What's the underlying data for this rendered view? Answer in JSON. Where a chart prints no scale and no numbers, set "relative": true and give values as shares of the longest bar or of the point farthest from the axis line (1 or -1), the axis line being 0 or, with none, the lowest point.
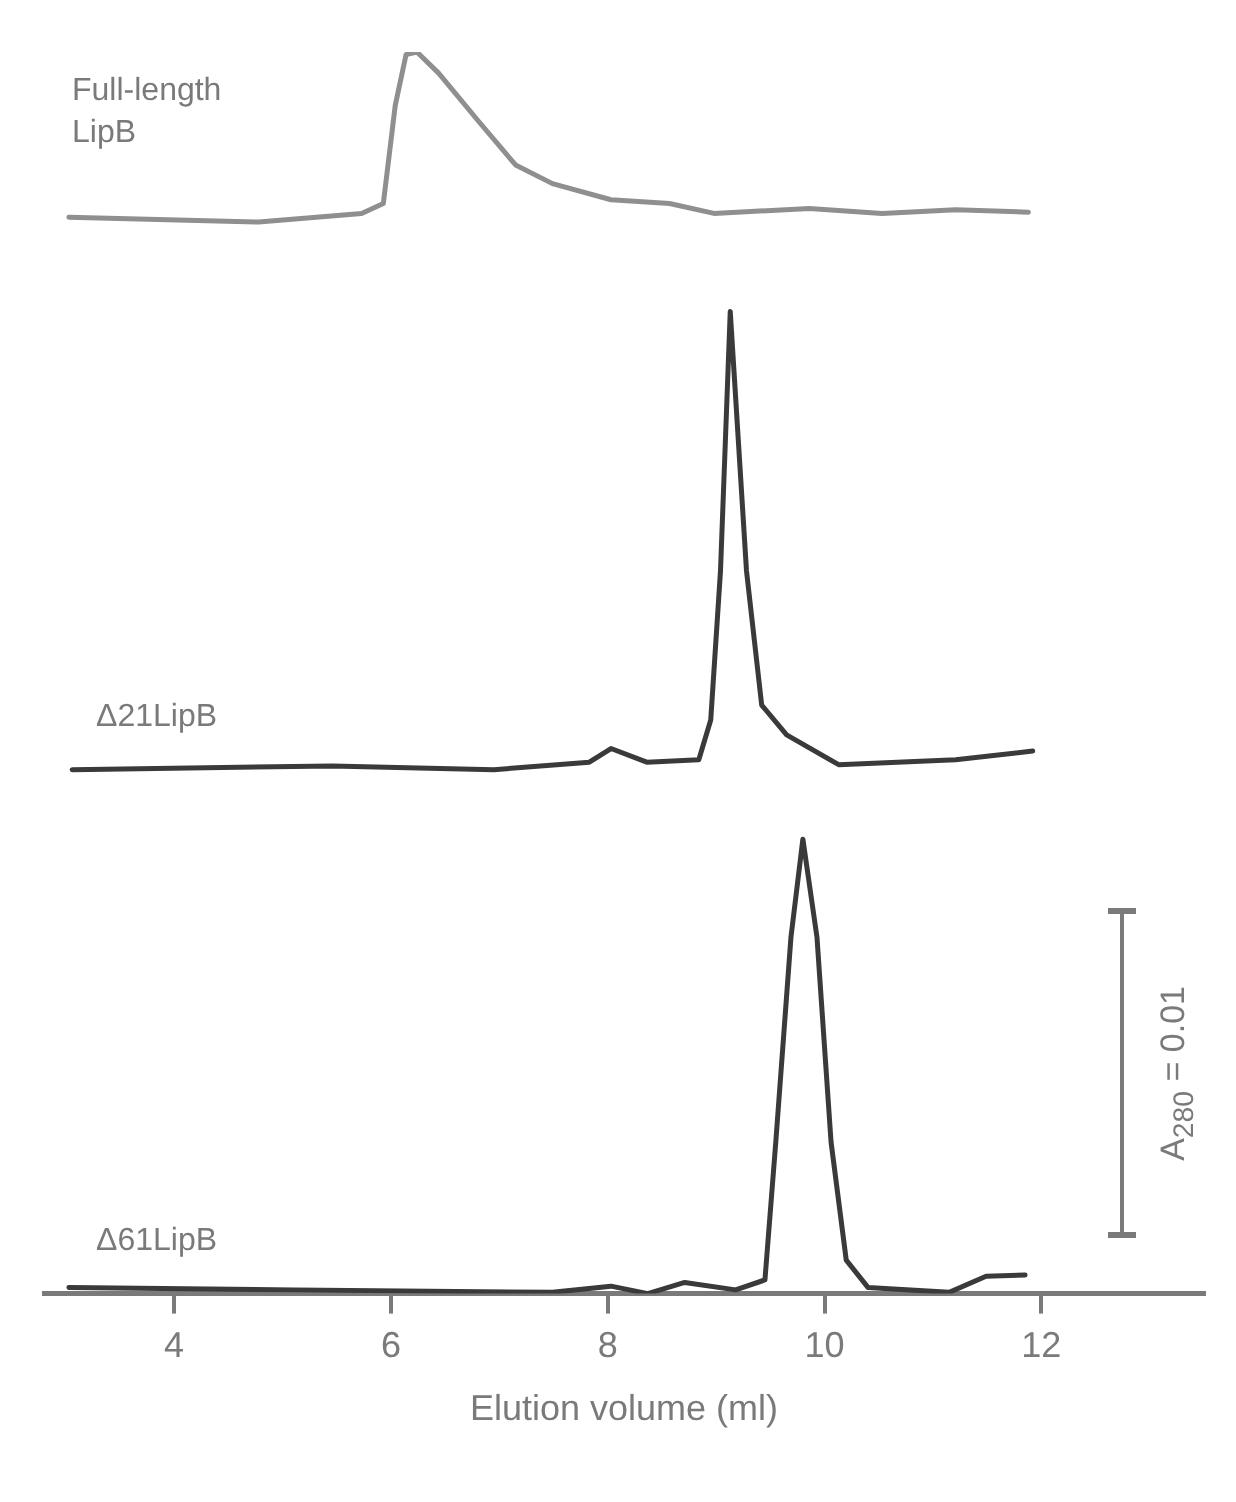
{
  "chart_data": {
    "type": "line",
    "relative": true,
    "xlim": [
      2.8,
      13.5
    ],
    "xticks": [
      4,
      6,
      8,
      10,
      12
    ],
    "xlabel": "Elution volume (ml)",
    "annotations": [
      "A$_{280}$ = 0.01"
    ],
    "series": [
      {
        "name": "Full-length LipB",
        "color": "#8f8f8f",
        "x": [
          3.03,
          4.78,
          5.73,
          5.93,
          6.04,
          6.14,
          6.24,
          6.44,
          6.81,
          7.15,
          7.49,
          8.03,
          8.57,
          8.98,
          9.86,
          10.53,
          11.21,
          11.88
        ],
        "values": [
          0.867,
          0.863,
          0.87,
          0.878,
          0.957,
          0.998,
          1,
          0.983,
          0.944,
          0.909,
          0.894,
          0.881,
          0.878,
          0.87,
          0.874,
          0.87,
          0.873,
          0.871
        ]
      },
      {
        "name": "Δ21LipB",
        "color": "#3a3a3a",
        "x": [
          3.06,
          5.46,
          6.95,
          7.83,
          8.03,
          8.36,
          8.84,
          8.95,
          9.04,
          9.13,
          9.28,
          9.42,
          9.65,
          10.13,
          11.21,
          11.92
        ],
        "values": [
          0.422,
          0.425,
          0.422,
          0.428,
          0.439,
          0.428,
          0.43,
          0.462,
          0.582,
          0.791,
          0.582,
          0.474,
          0.45,
          0.426,
          0.43,
          0.437
        ]
      },
      {
        "name": "Δ61LipB",
        "color": "#3a3a3a",
        "x": [
          3.03,
          5.12,
          7.49,
          8.03,
          8.37,
          8.71,
          9.18,
          9.45,
          9.55,
          9.69,
          9.8,
          9.93,
          10.06,
          10.2,
          10.4,
          11.15,
          11.49,
          11.85
        ],
        "values": [
          0.005,
          0.003,
          0.001,
          0.006,
          0,
          0.009,
          0.003,
          0.011,
          0.122,
          0.287,
          0.366,
          0.287,
          0.122,
          0.027,
          0.005,
          0.001,
          0.014,
          0.015
        ]
      }
    ]
  }
}
